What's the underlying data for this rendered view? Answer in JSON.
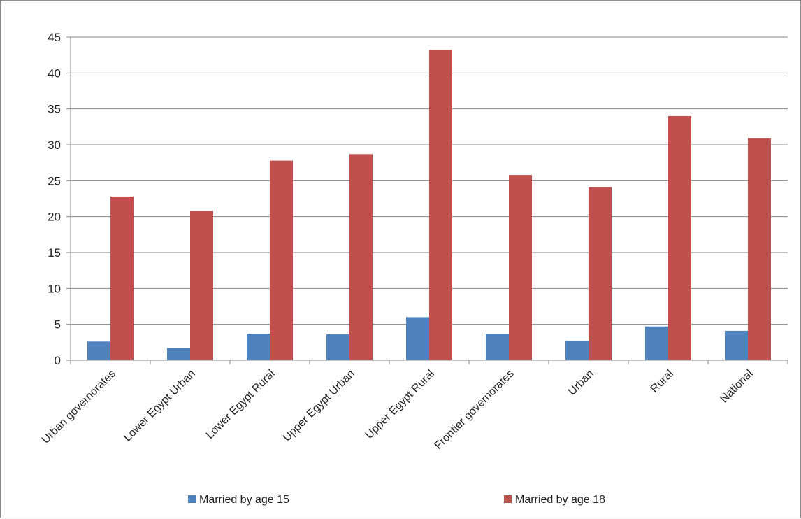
{
  "chart_data": {
    "type": "bar",
    "categories": [
      "Urban governorates",
      "Lower Egypt Urban",
      "Lower Egypt Rural",
      "Upper Egypt Urban",
      "Upper Egypt Rural",
      "Frontier governorates",
      "Urban",
      "Rural",
      "National"
    ],
    "series": [
      {
        "name": "Married by age 15",
        "color": "#4f81bd",
        "values": [
          2.6,
          1.7,
          3.7,
          3.6,
          6.0,
          3.7,
          2.7,
          4.7,
          4.1
        ]
      },
      {
        "name": "Married by age 18",
        "color": "#c0504d",
        "values": [
          22.8,
          20.8,
          27.8,
          28.7,
          43.2,
          25.8,
          24.1,
          34.0,
          30.9
        ]
      }
    ],
    "ylim": [
      0,
      45
    ],
    "yticks": [
      0,
      5,
      10,
      15,
      20,
      25,
      30,
      35,
      40,
      45
    ],
    "grid": true,
    "legend_position": "bottom"
  }
}
